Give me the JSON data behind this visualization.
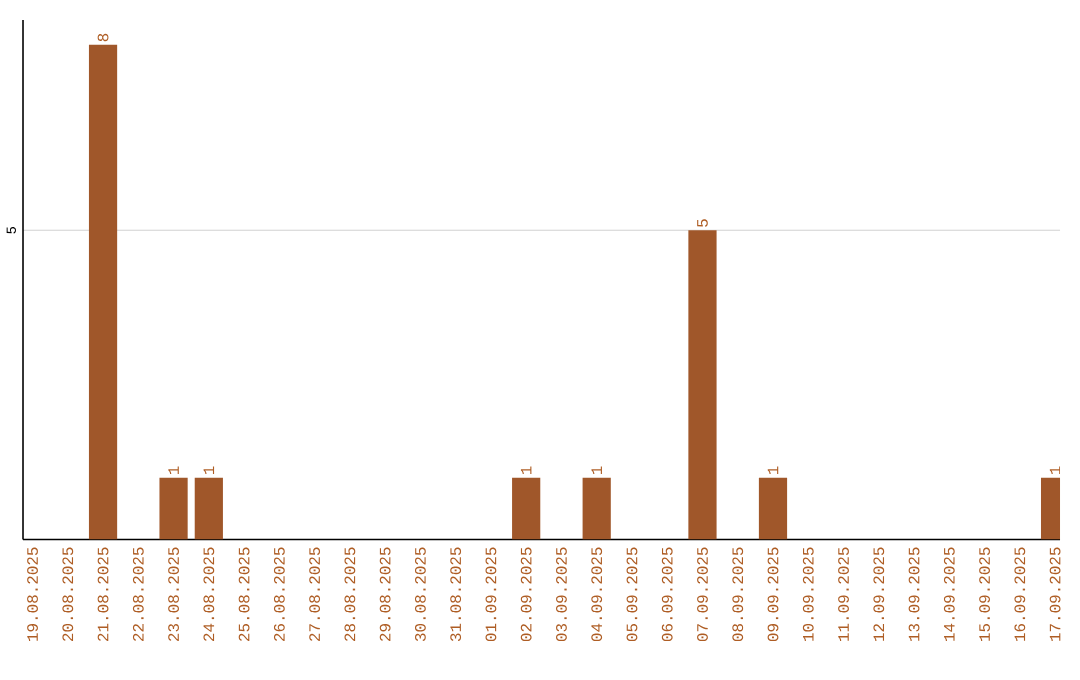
{
  "chart_data": {
    "type": "bar",
    "categories": [
      "19.08.2025",
      "20.08.2025",
      "21.08.2025",
      "22.08.2025",
      "23.08.2025",
      "24.08.2025",
      "25.08.2025",
      "26.08.2025",
      "27.08.2025",
      "28.08.2025",
      "29.08.2025",
      "30.08.2025",
      "31.08.2025",
      "01.09.2025",
      "02.09.2025",
      "03.09.2025",
      "04.09.2025",
      "05.09.2025",
      "06.09.2025",
      "07.09.2025",
      "08.09.2025",
      "09.09.2025",
      "10.09.2025",
      "11.09.2025",
      "12.09.2025",
      "13.09.2025",
      "14.09.2025",
      "15.09.2025",
      "16.09.2025",
      "17.09.2025"
    ],
    "values": [
      0,
      0,
      8,
      0,
      1,
      1,
      0,
      0,
      0,
      0,
      0,
      0,
      0,
      0,
      1,
      0,
      1,
      0,
      0,
      5,
      0,
      1,
      0,
      0,
      0,
      0,
      0,
      0,
      0,
      1
    ],
    "value_labels": [
      null,
      null,
      "8",
      null,
      "1",
      "1",
      null,
      null,
      null,
      null,
      null,
      null,
      null,
      null,
      "1",
      null,
      "1",
      null,
      null,
      "5",
      null,
      "1",
      null,
      null,
      null,
      null,
      null,
      null,
      null,
      "1"
    ],
    "color": "#a0572a",
    "ylim": [
      0,
      8.4
    ],
    "yticks": [
      5
    ],
    "grid": "y"
  }
}
